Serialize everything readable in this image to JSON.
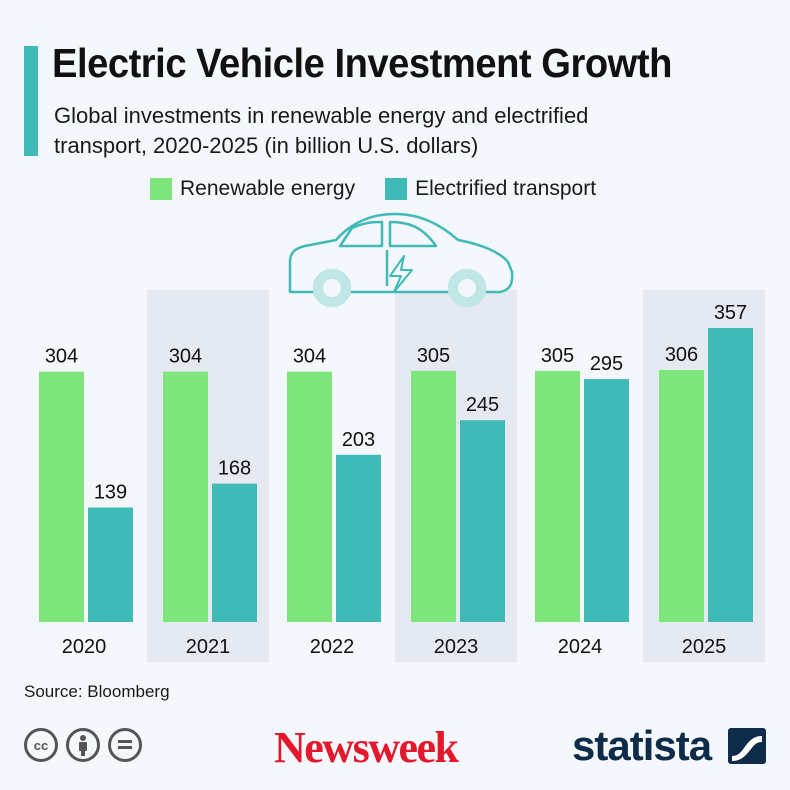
{
  "title": "Electric Vehicle Investment Growth",
  "subtitle": "Global investments in renewable energy and electrified transport, 2020-2025 (in billion U.S. dollars)",
  "source": "Source: Bloomberg",
  "brands": {
    "newsweek": "Newsweek",
    "statista": "statista"
  },
  "cc_icons": [
    "cc-icon",
    "attribution-icon",
    "no-derivatives-icon"
  ],
  "colors": {
    "renewable": "#7ee67c",
    "transport": "#3fbab7",
    "accent": "#3fbab7",
    "shade": "#e4e9f2",
    "newsweek": "#e3182d",
    "statista": "#0f2b4a"
  },
  "chart_data": {
    "type": "bar",
    "title": "Electric Vehicle Investment Growth",
    "categories": [
      "2020",
      "2021",
      "2022",
      "2023",
      "2024",
      "2025"
    ],
    "series": [
      {
        "name": "Renewable energy",
        "values": [
          304,
          304,
          304,
          305,
          305,
          306
        ]
      },
      {
        "name": "Electrified transport",
        "values": [
          139,
          168,
          203,
          245,
          295,
          357
        ]
      }
    ],
    "xlabel": "",
    "ylabel": "",
    "ylim": [
      0,
      357
    ],
    "grid": false,
    "legend": "top"
  }
}
